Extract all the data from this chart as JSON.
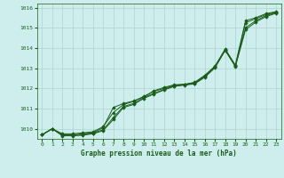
{
  "title": "Graphe pression niveau de la mer (hPa)",
  "bg_color": "#ceeeed",
  "grid_color": "#aed4d0",
  "line_color": "#1a5c1a",
  "marker_color": "#1a5c1a",
  "xlim": [
    -0.5,
    23.5
  ],
  "ylim": [
    1009.5,
    1016.2
  ],
  "yticks": [
    1010,
    1011,
    1012,
    1013,
    1014,
    1015,
    1016
  ],
  "xticks": [
    0,
    1,
    2,
    3,
    4,
    5,
    6,
    7,
    8,
    9,
    10,
    11,
    12,
    13,
    14,
    15,
    16,
    17,
    18,
    19,
    20,
    21,
    22,
    23
  ],
  "series": [
    [
      1009.7,
      1010.0,
      1009.75,
      1009.75,
      1009.8,
      1009.85,
      1010.1,
      1010.8,
      1011.2,
      1011.35,
      1011.6,
      1011.85,
      1012.0,
      1012.15,
      1012.2,
      1012.3,
      1012.65,
      1013.1,
      1013.95,
      1013.15,
      1015.35,
      1015.5,
      1015.7,
      1015.8
    ],
    [
      1009.7,
      1010.0,
      1009.7,
      1009.7,
      1009.72,
      1009.78,
      1009.95,
      1010.55,
      1011.1,
      1011.25,
      1011.55,
      1011.75,
      1011.95,
      1012.12,
      1012.18,
      1012.25,
      1012.58,
      1013.05,
      1013.9,
      1013.1,
      1015.0,
      1015.35,
      1015.6,
      1015.75
    ],
    [
      1009.7,
      1010.0,
      1009.65,
      1009.65,
      1009.68,
      1009.75,
      1009.9,
      1010.45,
      1011.05,
      1011.2,
      1011.5,
      1011.72,
      1011.92,
      1012.1,
      1012.16,
      1012.22,
      1012.55,
      1013.02,
      1013.88,
      1013.08,
      1014.9,
      1015.28,
      1015.55,
      1015.72
    ],
    [
      1009.7,
      1010.0,
      1009.68,
      1009.68,
      1009.75,
      1009.8,
      1010.05,
      1011.05,
      1011.25,
      1011.38,
      1011.58,
      1011.88,
      1012.05,
      1012.18,
      1012.2,
      1012.28,
      1012.62,
      1013.08,
      1013.92,
      1013.12,
      1015.25,
      1015.45,
      1015.65,
      1015.78
    ]
  ]
}
